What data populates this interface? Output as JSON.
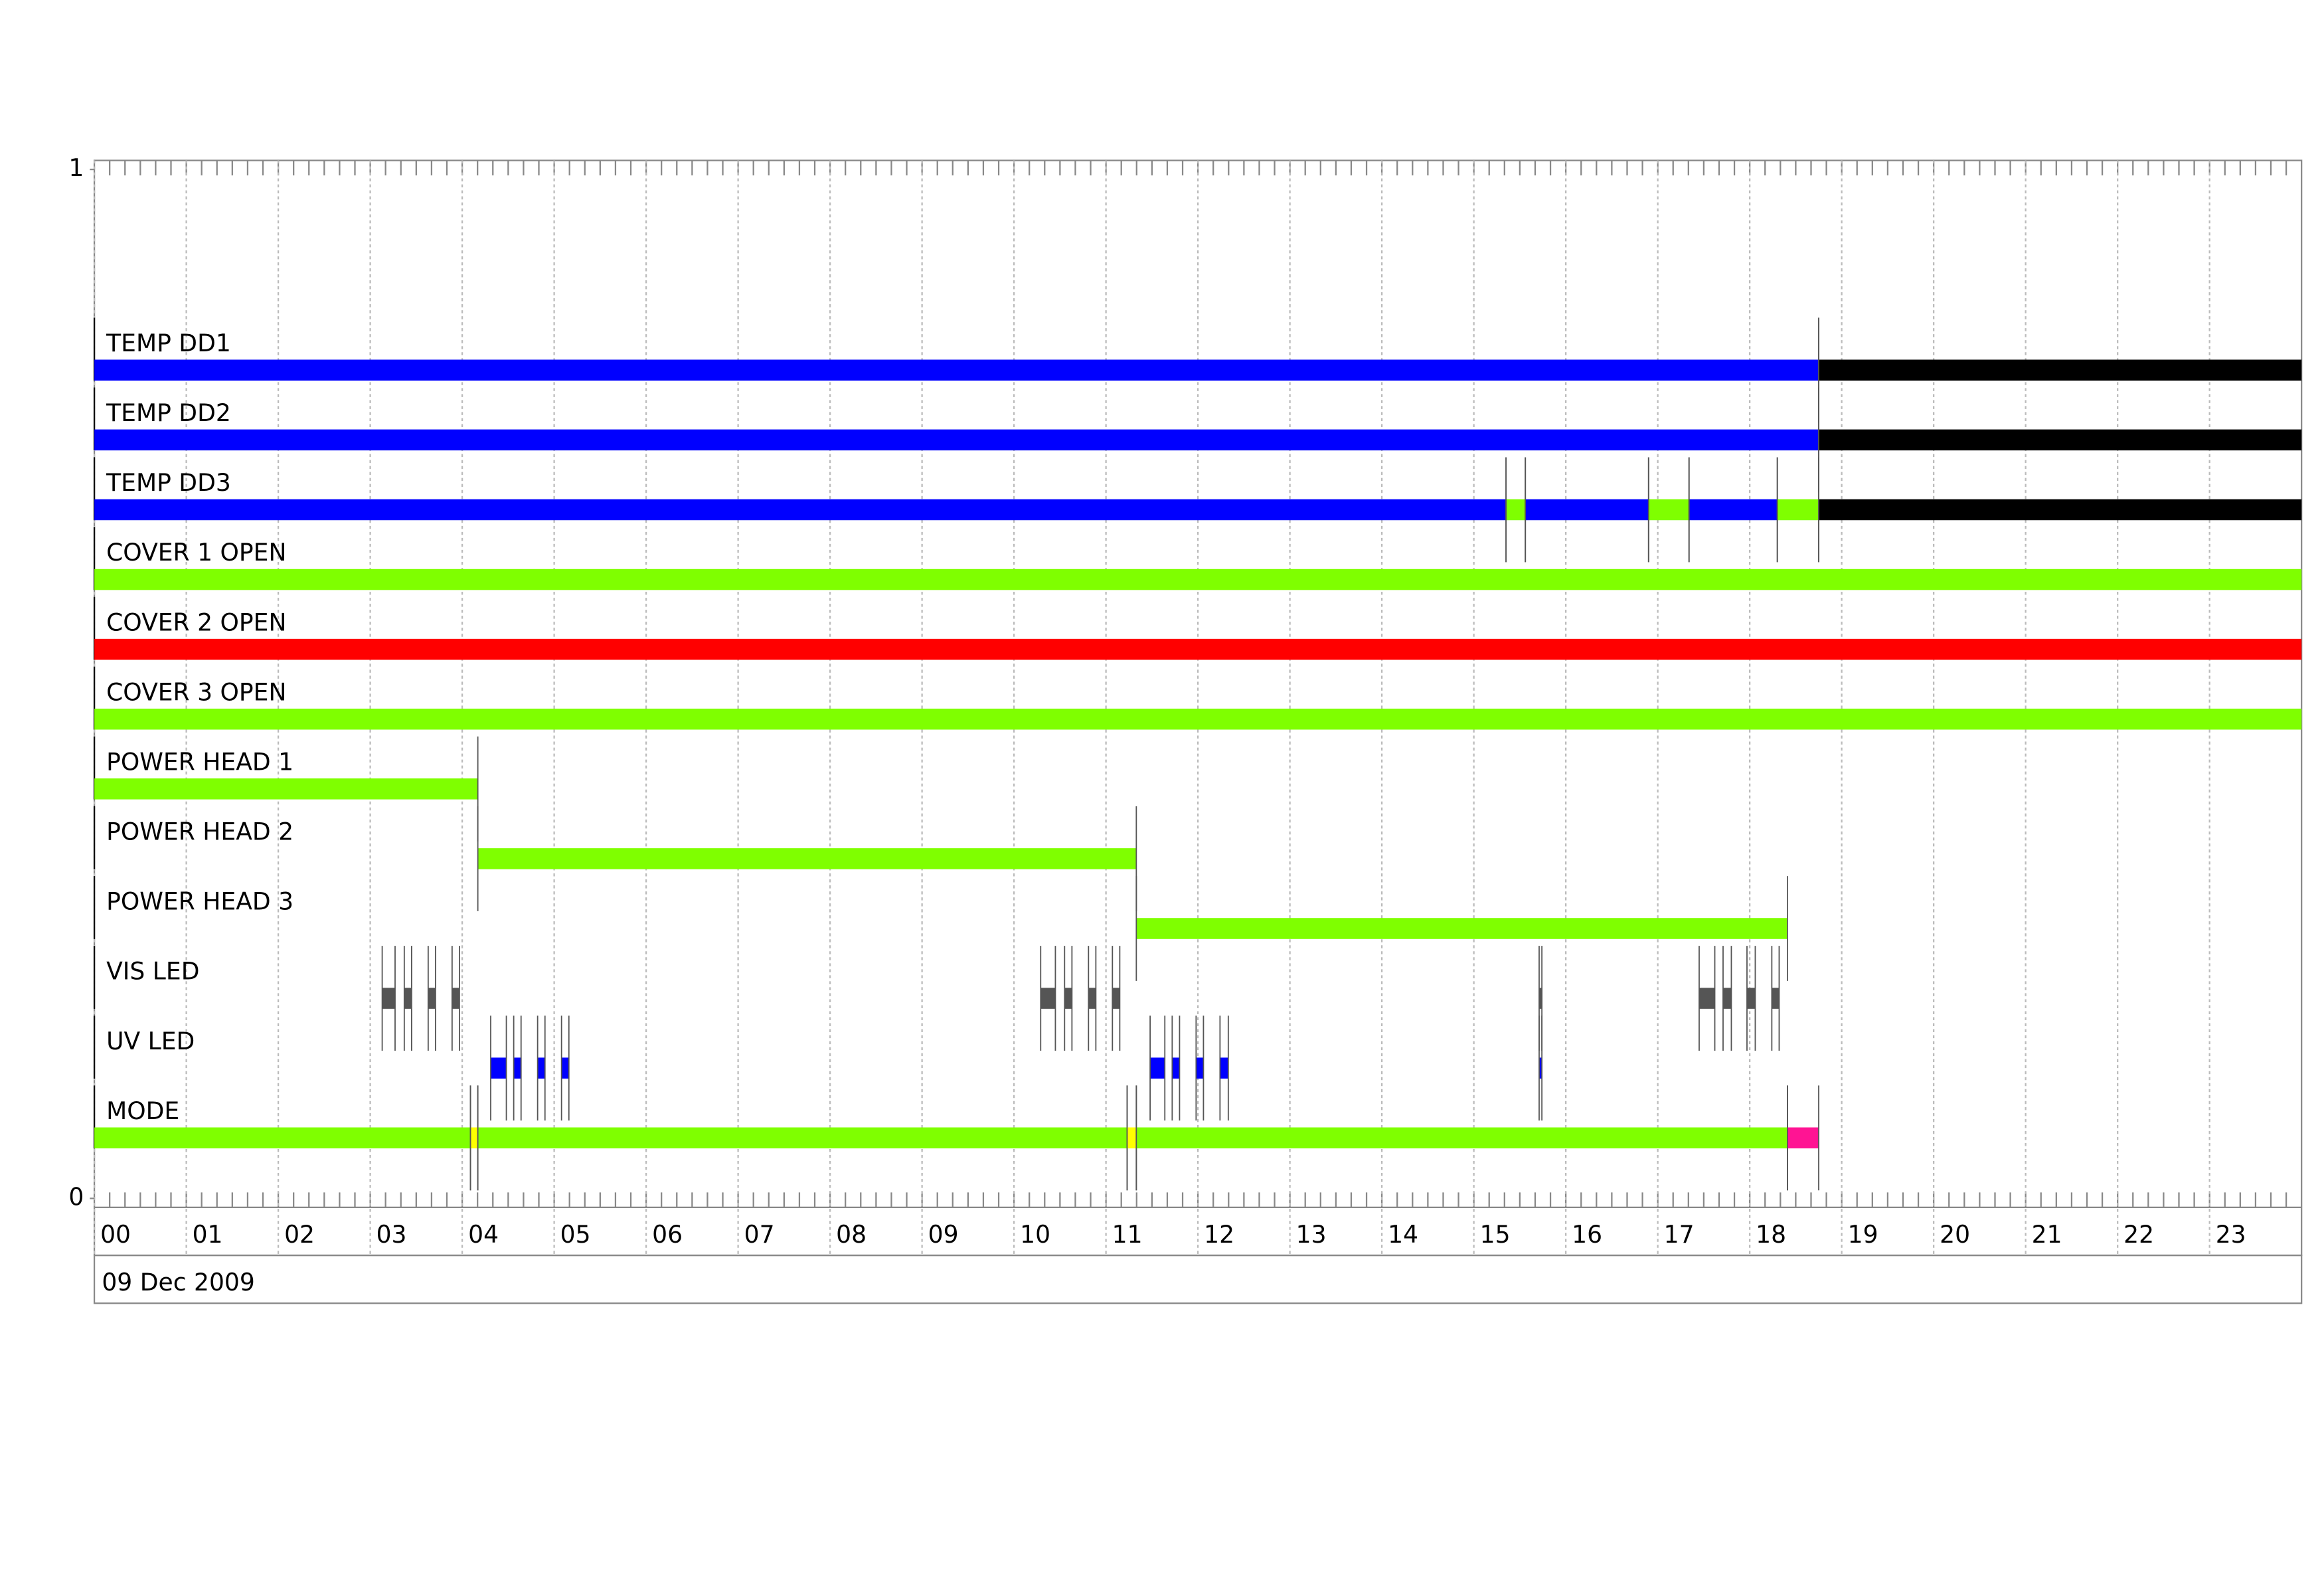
{
  "chart_data": {
    "type": "timeline",
    "xlim": [
      0,
      24
    ],
    "xticks": [
      {
        "value": 0,
        "label": "00"
      },
      {
        "value": 1,
        "label": "01"
      },
      {
        "value": 2,
        "label": "02"
      },
      {
        "value": 3,
        "label": "03"
      },
      {
        "value": 4,
        "label": "04"
      },
      {
        "value": 5,
        "label": "05"
      },
      {
        "value": 6,
        "label": "06"
      },
      {
        "value": 7,
        "label": "07"
      },
      {
        "value": 8,
        "label": "08"
      },
      {
        "value": 9,
        "label": "09"
      },
      {
        "value": 10,
        "label": "10"
      },
      {
        "value": 11,
        "label": "11"
      },
      {
        "value": 12,
        "label": "12"
      },
      {
        "value": 13,
        "label": "13"
      },
      {
        "value": 14,
        "label": "14"
      },
      {
        "value": 15,
        "label": "15"
      },
      {
        "value": 16,
        "label": "16"
      },
      {
        "value": 17,
        "label": "17"
      },
      {
        "value": 18,
        "label": "18"
      },
      {
        "value": 19,
        "label": "19"
      },
      {
        "value": 20,
        "label": "20"
      },
      {
        "value": 21,
        "label": "21"
      },
      {
        "value": 22,
        "label": "22"
      },
      {
        "value": 23,
        "label": "23"
      }
    ],
    "ylim": [
      0,
      1
    ],
    "yticks": [
      0,
      1
    ],
    "grid": true,
    "date_label": "09 Dec 2009",
    "rows": [
      {
        "name": "TEMP DD1",
        "segments": [
          {
            "start": 0,
            "end": 18.75,
            "color": "#0000ff"
          },
          {
            "start": 18.75,
            "end": 24,
            "color": "#000000"
          }
        ]
      },
      {
        "name": "TEMP DD2",
        "segments": [
          {
            "start": 0,
            "end": 18.75,
            "color": "#0000ff"
          },
          {
            "start": 18.75,
            "end": 24,
            "color": "#000000"
          }
        ]
      },
      {
        "name": "TEMP DD3",
        "segments": [
          {
            "start": 0,
            "end": 15.35,
            "color": "#0000ff"
          },
          {
            "start": 15.35,
            "end": 15.56,
            "color": "#7fff00"
          },
          {
            "start": 15.56,
            "end": 16.9,
            "color": "#0000ff"
          },
          {
            "start": 16.9,
            "end": 17.34,
            "color": "#7fff00"
          },
          {
            "start": 17.34,
            "end": 18.3,
            "color": "#0000ff"
          },
          {
            "start": 18.3,
            "end": 18.75,
            "color": "#7fff00"
          },
          {
            "start": 18.75,
            "end": 24,
            "color": "#000000"
          }
        ]
      },
      {
        "name": "COVER 1 OPEN",
        "segments": [
          {
            "start": 0,
            "end": 24,
            "color": "#7fff00"
          }
        ]
      },
      {
        "name": "COVER 2 OPEN",
        "segments": [
          {
            "start": 0,
            "end": 24,
            "color": "#ff0000"
          }
        ]
      },
      {
        "name": "COVER 3 OPEN",
        "segments": [
          {
            "start": 0,
            "end": 24,
            "color": "#7fff00"
          }
        ]
      },
      {
        "name": "POWER HEAD 1",
        "segments": [
          {
            "start": 0,
            "end": 4.17,
            "color": "#7fff00"
          }
        ]
      },
      {
        "name": "POWER HEAD 2",
        "segments": [
          {
            "start": 4.17,
            "end": 11.33,
            "color": "#7fff00"
          }
        ]
      },
      {
        "name": "POWER HEAD 3",
        "segments": [
          {
            "start": 11.33,
            "end": 18.41,
            "color": "#7fff00"
          }
        ]
      },
      {
        "name": "VIS LED",
        "segments": [
          {
            "start": 3.13,
            "end": 3.27,
            "color": "#555555"
          },
          {
            "start": 3.37,
            "end": 3.45,
            "color": "#555555"
          },
          {
            "start": 3.63,
            "end": 3.71,
            "color": "#555555"
          },
          {
            "start": 3.89,
            "end": 3.97,
            "color": "#555555"
          },
          {
            "start": 10.29,
            "end": 10.45,
            "color": "#555555"
          },
          {
            "start": 10.55,
            "end": 10.63,
            "color": "#555555"
          },
          {
            "start": 10.81,
            "end": 10.89,
            "color": "#555555"
          },
          {
            "start": 11.07,
            "end": 11.15,
            "color": "#555555"
          },
          {
            "start": 15.71,
            "end": 15.74,
            "color": "#555555"
          },
          {
            "start": 17.45,
            "end": 17.62,
            "color": "#555555"
          },
          {
            "start": 17.71,
            "end": 17.8,
            "color": "#555555"
          },
          {
            "start": 17.97,
            "end": 18.06,
            "color": "#555555"
          },
          {
            "start": 18.24,
            "end": 18.32,
            "color": "#555555"
          }
        ]
      },
      {
        "name": "UV LED",
        "segments": [
          {
            "start": 4.31,
            "end": 4.48,
            "color": "#0000ff"
          },
          {
            "start": 4.56,
            "end": 4.64,
            "color": "#0000ff"
          },
          {
            "start": 4.82,
            "end": 4.9,
            "color": "#0000ff"
          },
          {
            "start": 5.08,
            "end": 5.16,
            "color": "#0000ff"
          },
          {
            "start": 11.48,
            "end": 11.64,
            "color": "#0000ff"
          },
          {
            "start": 11.72,
            "end": 11.8,
            "color": "#0000ff"
          },
          {
            "start": 11.98,
            "end": 12.06,
            "color": "#0000ff"
          },
          {
            "start": 12.24,
            "end": 12.33,
            "color": "#0000ff"
          },
          {
            "start": 15.71,
            "end": 15.74,
            "color": "#0000ff"
          }
        ]
      },
      {
        "name": "MODE",
        "segments": [
          {
            "start": 0,
            "end": 4.09,
            "color": "#7fff00"
          },
          {
            "start": 4.09,
            "end": 4.17,
            "color": "#ffff00"
          },
          {
            "start": 4.17,
            "end": 11.23,
            "color": "#7fff00"
          },
          {
            "start": 11.23,
            "end": 11.33,
            "color": "#ffff00"
          },
          {
            "start": 11.33,
            "end": 18.41,
            "color": "#7fff00"
          },
          {
            "start": 18.41,
            "end": 18.75,
            "color": "#ff1493"
          }
        ]
      }
    ]
  }
}
